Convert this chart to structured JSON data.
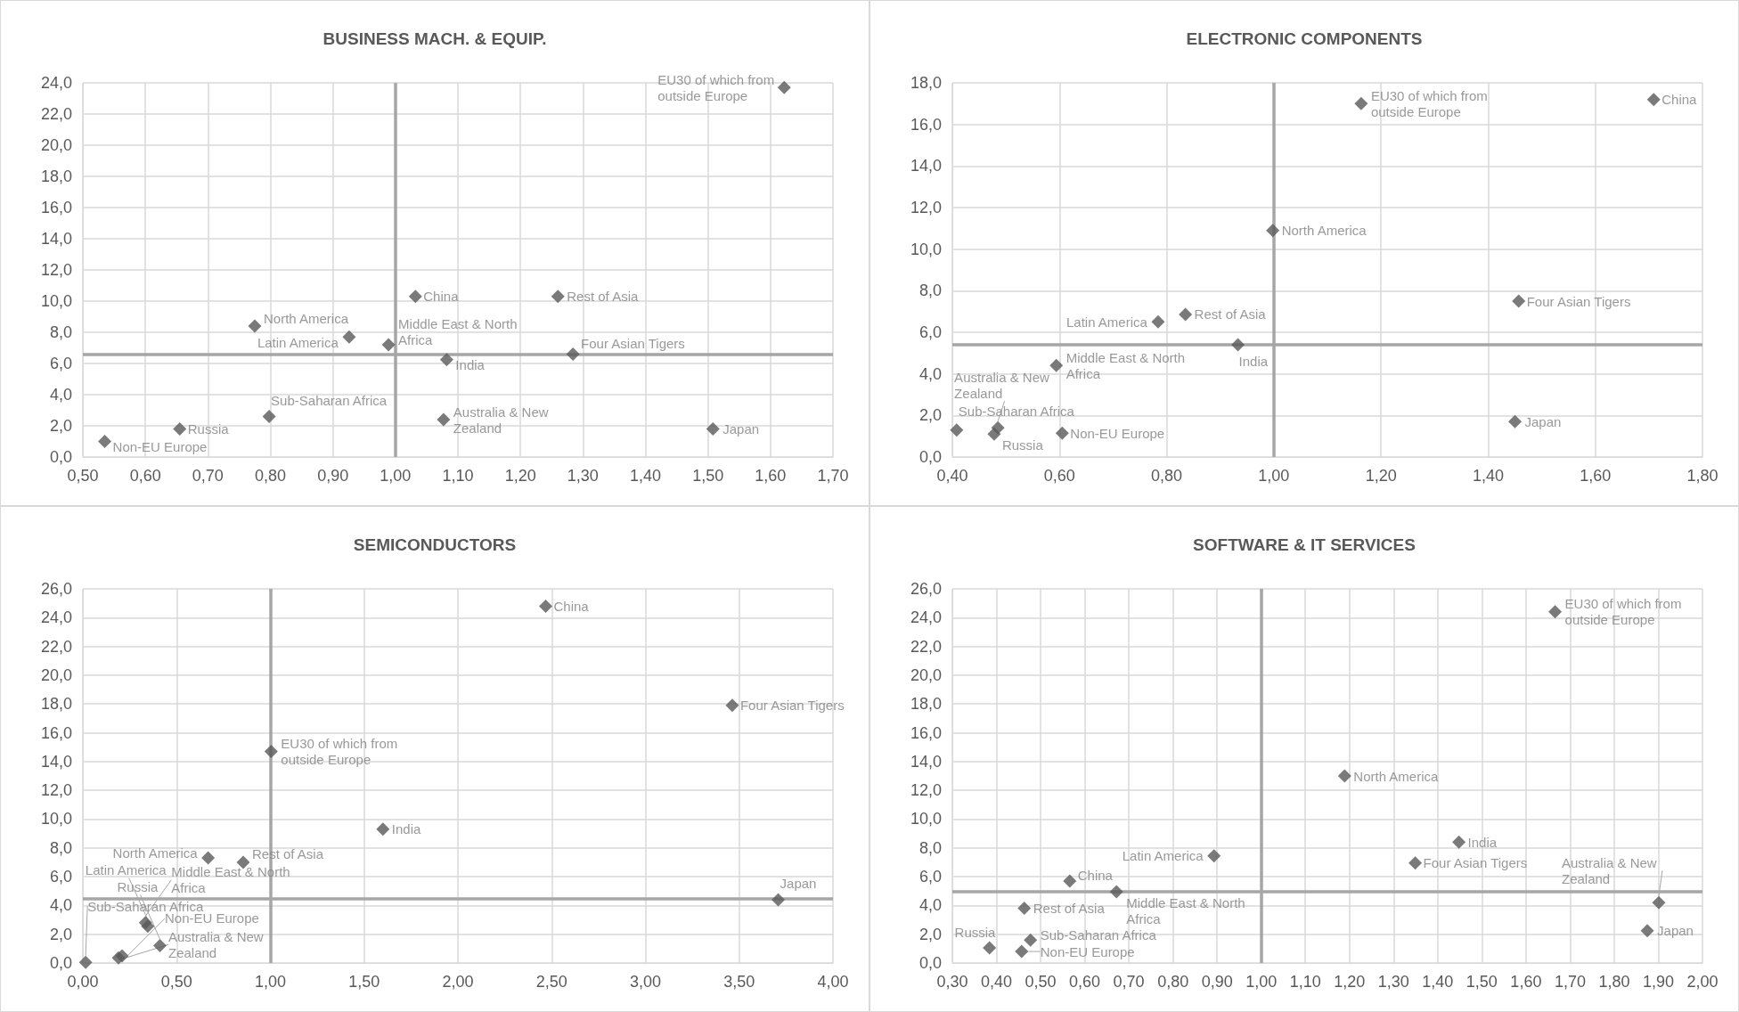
{
  "chart_data": [
    {
      "type": "scatter",
      "title": "BUSINESS MACH. & EQUIP.",
      "marker": "diamond",
      "grid": true,
      "x": [
        1.622,
        1.032,
        1.26,
        0.775,
        0.926,
        0.989,
        1.082,
        1.284,
        0.798,
        1.077,
        1.508,
        0.655,
        0.535
      ],
      "series": [
        {
          "color": "#595959",
          "values": [
            23.7,
            10.3,
            10.3,
            8.4,
            7.7,
            7.2,
            6.25,
            6.6,
            2.6,
            2.4,
            1.8,
            1.8,
            1.0
          ],
          "value_labels": [
            "EU30 of which from outside Europe",
            "China",
            "Rest of Asia",
            "North America",
            "Latin America",
            "Middle East & North Africa",
            "India",
            "Four Asian Tigers",
            "Sub-Saharan Africa",
            "Australia & New Zealand",
            "Japan",
            "Russia",
            "Non-EU Europe"
          ]
        }
      ],
      "xlim": [
        0.5,
        1.7
      ],
      "xticks": [
        {
          "value": 0.5,
          "label": "0,50"
        },
        {
          "value": 0.6,
          "label": "0,60"
        },
        {
          "value": 0.7,
          "label": "0,70"
        },
        {
          "value": 0.8,
          "label": "0,80"
        },
        {
          "value": 0.9,
          "label": "0,90"
        },
        {
          "value": 1.0,
          "label": "1,00"
        },
        {
          "value": 1.1,
          "label": "1,10"
        },
        {
          "value": 1.2,
          "label": "1,20"
        },
        {
          "value": 1.3,
          "label": "1,30"
        },
        {
          "value": 1.4,
          "label": "1,40"
        },
        {
          "value": 1.5,
          "label": "1,50"
        },
        {
          "value": 1.6,
          "label": "1,60"
        },
        {
          "value": 1.7,
          "label": "1,70"
        }
      ],
      "ylim": [
        0,
        24
      ],
      "yticks": [
        {
          "value": 0,
          "label": "0,0"
        },
        {
          "value": 2,
          "label": "2,0"
        },
        {
          "value": 4,
          "label": "4,0"
        },
        {
          "value": 6,
          "label": "6,0"
        },
        {
          "value": 8,
          "label": "8,0"
        },
        {
          "value": 10,
          "label": "10,0"
        },
        {
          "value": 12,
          "label": "12,0"
        },
        {
          "value": 14,
          "label": "14,0"
        },
        {
          "value": 16,
          "label": "16,0"
        },
        {
          "value": 18,
          "label": "18,0"
        },
        {
          "value": 20,
          "label": "20,0"
        },
        {
          "value": 22,
          "label": "22,0"
        },
        {
          "value": 24,
          "label": "24,0"
        }
      ],
      "ref_lines": [
        {
          "axis": "x",
          "value": 1.0,
          "color": "#a6a6a6"
        },
        {
          "axis": "y",
          "value": 6.6,
          "color": "#a6a6a6"
        }
      ]
    },
    {
      "type": "scatter",
      "title": "ELECTRONIC COMPONENTS",
      "marker": "diamond",
      "grid": true,
      "x": [
        1.163,
        1.709,
        0.998,
        1.457,
        0.835,
        0.784,
        0.933,
        0.594,
        1.45,
        0.408,
        0.485,
        0.478,
        0.605
      ],
      "series": [
        {
          "color": "#595959",
          "values": [
            17.0,
            17.2,
            10.9,
            7.5,
            6.86,
            6.5,
            5.4,
            4.4,
            1.7,
            1.3,
            1.4,
            1.1,
            1.15
          ],
          "value_labels": [
            "EU30 of which from outside Europe",
            "China",
            "North America",
            "Four Asian Tigers",
            "Rest of Asia",
            "Latin America",
            "India",
            "Middle East & North Africa",
            "Japan",
            "Sub-Saharan Africa",
            "Australia & New Zealand",
            "Russia",
            "Non-EU Europe"
          ]
        }
      ],
      "xlim": [
        0.4,
        1.8
      ],
      "xticks": [
        {
          "value": 0.4,
          "label": "0,40"
        },
        {
          "value": 0.6,
          "label": "0,60"
        },
        {
          "value": 0.8,
          "label": "0,80"
        },
        {
          "value": 1.0,
          "label": "1,00"
        },
        {
          "value": 1.2,
          "label": "1,20"
        },
        {
          "value": 1.4,
          "label": "1,40"
        },
        {
          "value": 1.6,
          "label": "1,60"
        },
        {
          "value": 1.8,
          "label": "1,80"
        }
      ],
      "ylim": [
        0,
        18
      ],
      "yticks": [
        {
          "value": 0,
          "label": "0,0"
        },
        {
          "value": 2,
          "label": "2,0"
        },
        {
          "value": 4,
          "label": "4,0"
        },
        {
          "value": 6,
          "label": "6,0"
        },
        {
          "value": 8,
          "label": "8,0"
        },
        {
          "value": 10,
          "label": "10,0"
        },
        {
          "value": 12,
          "label": "12,0"
        },
        {
          "value": 14,
          "label": "14,0"
        },
        {
          "value": 16,
          "label": "16,0"
        },
        {
          "value": 18,
          "label": "18,0"
        }
      ],
      "ref_lines": [
        {
          "axis": "x",
          "value": 1.0,
          "color": "#a6a6a6"
        },
        {
          "axis": "y",
          "value": 5.4,
          "color": "#a6a6a6"
        }
      ]
    },
    {
      "type": "scatter",
      "title": "SEMICONDUCTORS",
      "marker": "diamond",
      "grid": true,
      "x": [
        2.468,
        3.463,
        1.004,
        1.6,
        0.668,
        0.855,
        3.708,
        0.334,
        0.346,
        0.19,
        0.411,
        0.209,
        0.015
      ],
      "series": [
        {
          "color": "#595959",
          "values": [
            24.8,
            17.9,
            14.7,
            9.3,
            7.3,
            7.0,
            4.4,
            2.8,
            2.55,
            0.35,
            1.2,
            0.5,
            0.05
          ],
          "value_labels": [
            "China",
            "Four Asian Tigers",
            "EU30 of which from outside Europe",
            "India",
            "North America",
            "Rest of Asia",
            "Japan",
            "Middle East & North Africa",
            "Latin America",
            "Australia & New Zealand",
            "Russia",
            "Non-EU Europe",
            "Sub-Saharan Africa"
          ]
        }
      ],
      "xlim": [
        0,
        4
      ],
      "xticks": [
        {
          "value": 0,
          "label": "0,00"
        },
        {
          "value": 0.5,
          "label": "0,50"
        },
        {
          "value": 1.0,
          "label": "1,00"
        },
        {
          "value": 1.5,
          "label": "1,50"
        },
        {
          "value": 2.0,
          "label": "2,00"
        },
        {
          "value": 2.5,
          "label": "2,50"
        },
        {
          "value": 3.0,
          "label": "3,00"
        },
        {
          "value": 3.5,
          "label": "3,50"
        },
        {
          "value": 4.0,
          "label": "4,00"
        }
      ],
      "ylim": [
        0,
        26
      ],
      "yticks": [
        {
          "value": 0,
          "label": "0,0"
        },
        {
          "value": 2,
          "label": "2,0"
        },
        {
          "value": 4,
          "label": "4,0"
        },
        {
          "value": 6,
          "label": "6,0"
        },
        {
          "value": 8,
          "label": "8,0"
        },
        {
          "value": 10,
          "label": "10,0"
        },
        {
          "value": 12,
          "label": "12,0"
        },
        {
          "value": 14,
          "label": "14,0"
        },
        {
          "value": 16,
          "label": "16,0"
        },
        {
          "value": 18,
          "label": "18,0"
        },
        {
          "value": 20,
          "label": "20,0"
        },
        {
          "value": 22,
          "label": "22,0"
        },
        {
          "value": 24,
          "label": "24,0"
        },
        {
          "value": 26,
          "label": "26,0"
        }
      ],
      "ref_lines": [
        {
          "axis": "x",
          "value": 1.0,
          "color": "#a6a6a6"
        },
        {
          "axis": "y",
          "value": 4.45,
          "color": "#a6a6a6"
        }
      ]
    },
    {
      "type": "scatter",
      "title": "SOFTWARE & IT SERVICES",
      "marker": "diamond",
      "grid": true,
      "x": [
        1.666,
        1.189,
        1.448,
        1.349,
        0.893,
        0.566,
        0.672,
        0.463,
        1.901,
        1.875,
        0.477,
        0.384,
        0.457
      ],
      "series": [
        {
          "color": "#595959",
          "values": [
            24.4,
            13.0,
            8.4,
            6.95,
            7.45,
            5.7,
            4.95,
            3.8,
            4.2,
            2.25,
            1.6,
            1.05,
            0.8
          ],
          "value_labels": [
            "EU30 of which from outside Europe",
            "North America",
            "India",
            "Four Asian Tigers",
            "Latin America",
            "China",
            "Middle East & North Africa",
            "Rest of Asia",
            "Australia & New Zealand",
            "Japan",
            "Sub-Saharan Africa",
            "Russia",
            "Non-EU Europe"
          ]
        }
      ],
      "xlim": [
        0.3,
        2.0
      ],
      "xticks": [
        {
          "value": 0.3,
          "label": "0,30"
        },
        {
          "value": 0.4,
          "label": "0,40"
        },
        {
          "value": 0.5,
          "label": "0,50"
        },
        {
          "value": 0.6,
          "label": "0,60"
        },
        {
          "value": 0.7,
          "label": "0,70"
        },
        {
          "value": 0.8,
          "label": "0,80"
        },
        {
          "value": 0.9,
          "label": "0,90"
        },
        {
          "value": 1.0,
          "label": "1,00"
        },
        {
          "value": 1.1,
          "label": "1,10"
        },
        {
          "value": 1.2,
          "label": "1,20"
        },
        {
          "value": 1.3,
          "label": "1,30"
        },
        {
          "value": 1.4,
          "label": "1,40"
        },
        {
          "value": 1.5,
          "label": "1,50"
        },
        {
          "value": 1.6,
          "label": "1,60"
        },
        {
          "value": 1.7,
          "label": "1,70"
        },
        {
          "value": 1.8,
          "label": "1,80"
        },
        {
          "value": 1.9,
          "label": "1,90"
        },
        {
          "value": 2.0,
          "label": "2,00"
        }
      ],
      "ylim": [
        0,
        26
      ],
      "yticks": [
        {
          "value": 0,
          "label": "0,0"
        },
        {
          "value": 2,
          "label": "2,0"
        },
        {
          "value": 4,
          "label": "4,0"
        },
        {
          "value": 6,
          "label": "6,0"
        },
        {
          "value": 8,
          "label": "8,0"
        },
        {
          "value": 10,
          "label": "10,0"
        },
        {
          "value": 12,
          "label": "12,0"
        },
        {
          "value": 14,
          "label": "14,0"
        },
        {
          "value": 16,
          "label": "16,0"
        },
        {
          "value": 18,
          "label": "18,0"
        },
        {
          "value": 20,
          "label": "20,0"
        },
        {
          "value": 22,
          "label": "22,0"
        },
        {
          "value": 24,
          "label": "24,0"
        },
        {
          "value": 26,
          "label": "26,0"
        }
      ],
      "ref_lines": [
        {
          "axis": "x",
          "value": 1.0,
          "color": "#a6a6a6"
        },
        {
          "axis": "y",
          "value": 4.95,
          "color": "#a6a6a6"
        }
      ]
    }
  ]
}
